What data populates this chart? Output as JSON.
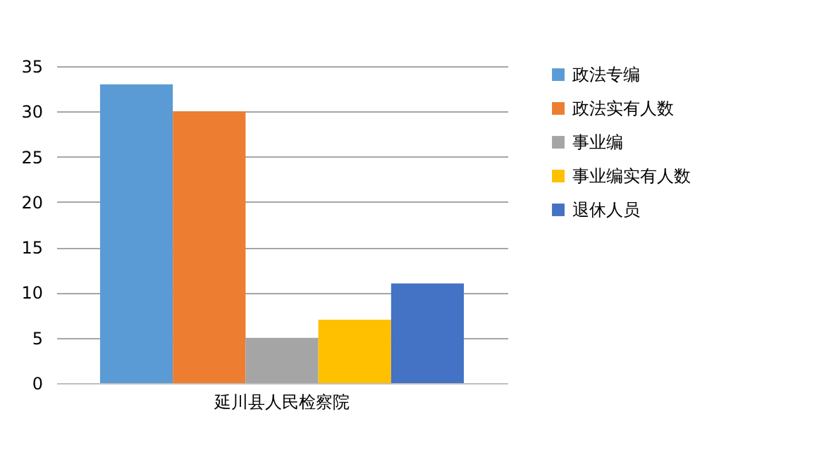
{
  "chart_data": {
    "type": "bar",
    "categories": [
      "延川县人民检察院"
    ],
    "series": [
      {
        "name": "政法专编",
        "color": "#5b9bd5",
        "values": [
          33
        ]
      },
      {
        "name": "政法实有人数",
        "color": "#ed7d31",
        "values": [
          30
        ]
      },
      {
        "name": "事业编",
        "color": "#a5a5a5",
        "values": [
          5
        ]
      },
      {
        "name": "事业编实有人数",
        "color": "#ffc000",
        "values": [
          7
        ]
      },
      {
        "name": "退休人员",
        "color": "#4472c4",
        "values": [
          11
        ]
      }
    ],
    "ylim": [
      0,
      35
    ],
    "yticks": [
      0,
      5,
      10,
      15,
      20,
      25,
      30,
      35
    ],
    "grid": "y",
    "legend": "right"
  }
}
